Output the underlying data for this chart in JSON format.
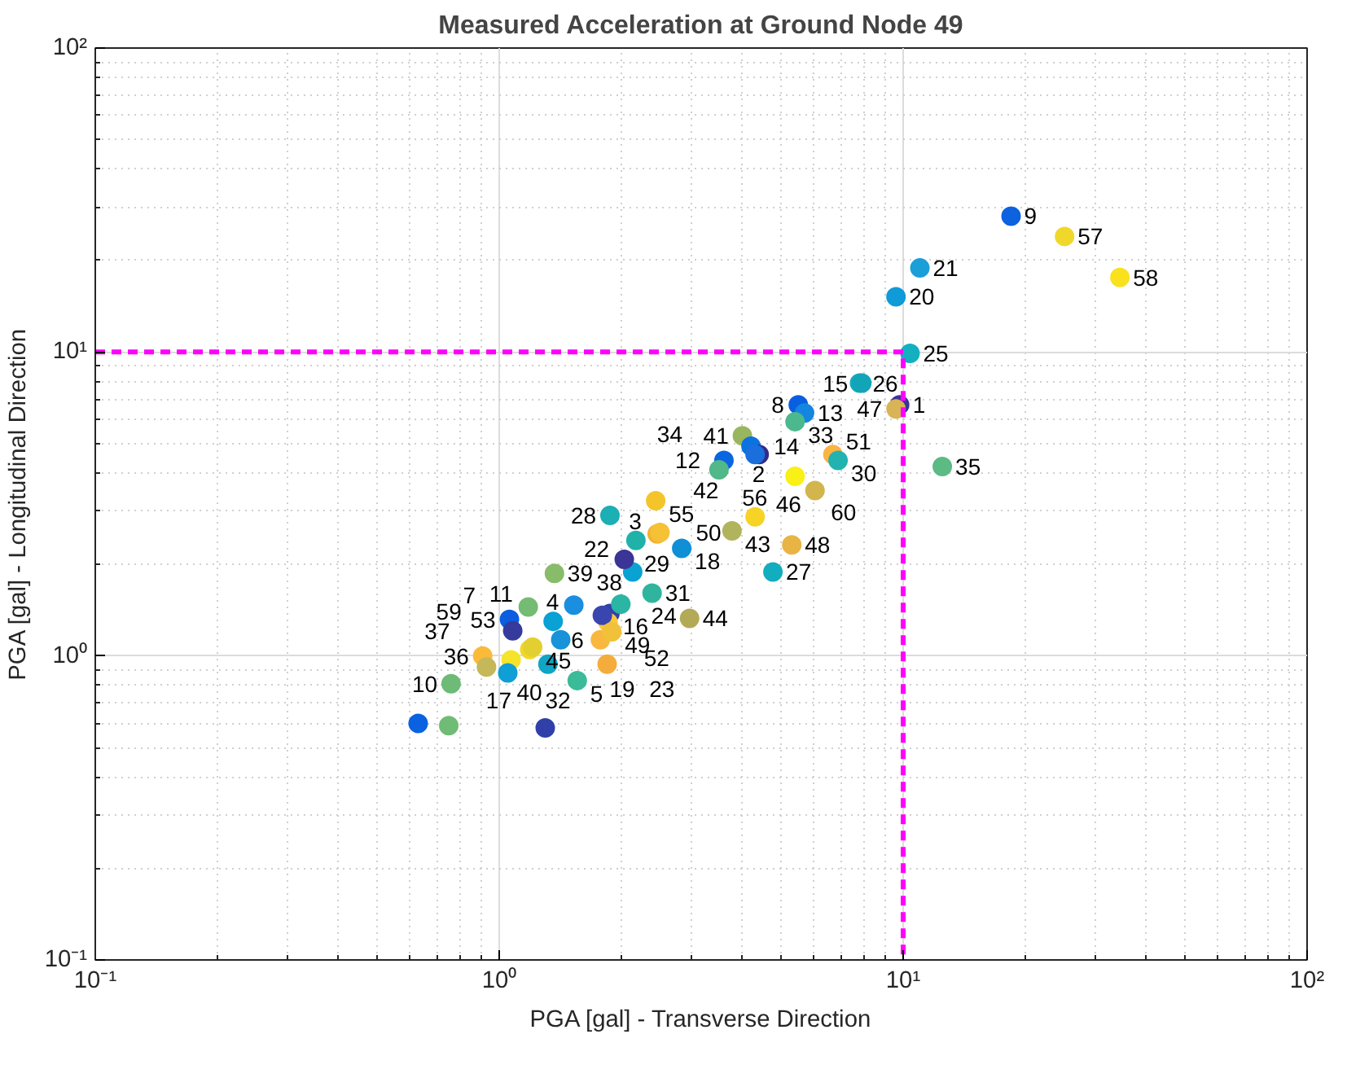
{
  "chart_data": {
    "type": "scatter",
    "title": "Measured Acceleration at Ground Node 49",
    "xlabel": "PGA [gal] - Transverse Direction",
    "ylabel": "PGA [gal] - Longitudinal Direction",
    "log": "xy",
    "grid": true,
    "marker": "circle",
    "xlim": [
      0.1,
      100
    ],
    "ylim": [
      0.1,
      100
    ],
    "xticks": [
      {
        "value": 0.1,
        "label": "10⁻¹"
      },
      {
        "value": 1,
        "label": "10⁰"
      },
      {
        "value": 10,
        "label": "10¹"
      },
      {
        "value": 100,
        "label": "10²"
      }
    ],
    "yticks": [
      {
        "value": 0.1,
        "label": "10⁻¹"
      },
      {
        "value": 1,
        "label": "10⁰"
      },
      {
        "value": 10,
        "label": "10¹"
      },
      {
        "value": 100,
        "label": "10²"
      }
    ],
    "series": [
      {
        "x": [
          18.5,
          25.1,
          34.4,
          11.0,
          9.6,
          10.4,
          7.8,
          7.9,
          9.8,
          9.6,
          5.5,
          5.7,
          5.4,
          4.0,
          4.2,
          4.4,
          3.6,
          4.3,
          3.5,
          6.7,
          6.9,
          12.5,
          5.4,
          6.05,
          2.44,
          1.88,
          4.3,
          3.77,
          5.3,
          4.76,
          2.18,
          2.46,
          2.5,
          2.83,
          1.37,
          2.14,
          2.04,
          2.39,
          2.96,
          1.18,
          1.53,
          1.88,
          1.86,
          1.36,
          1.06,
          1.08,
          1.19,
          1.21,
          1.42,
          1.78,
          1.85,
          1.32,
          0.91,
          1.07,
          0.76,
          0.93,
          1.05,
          1.56,
          0.63,
          0.75,
          1.3,
          1.8,
          2.0,
          1.9
        ],
        "values": [
          28.0,
          24.0,
          17.6,
          18.9,
          15.2,
          9.9,
          7.9,
          7.9,
          6.7,
          6.5,
          6.7,
          6.3,
          5.9,
          5.3,
          4.9,
          4.6,
          4.4,
          4.6,
          4.1,
          4.6,
          4.4,
          4.2,
          3.9,
          3.5,
          3.24,
          2.9,
          2.87,
          2.58,
          2.32,
          1.89,
          2.4,
          2.52,
          2.55,
          2.26,
          1.87,
          1.89,
          2.08,
          1.61,
          1.33,
          1.45,
          1.47,
          1.38,
          1.29,
          1.3,
          1.32,
          1.21,
          1.05,
          1.07,
          1.13,
          1.13,
          0.94,
          0.94,
          1.0,
          0.97,
          0.81,
          0.92,
          0.88,
          0.83,
          0.6,
          0.59,
          0.58,
          1.36,
          1.48,
          1.2
        ],
        "colors": [
          "#0d62e0",
          "#f0d82a",
          "#f9e11e",
          "#1a9fd8",
          "#0f9bd8",
          "#14b0c0",
          "#17aabf",
          "#12a5b8",
          "#3b3596",
          "#d8b456",
          "#0a5ee0",
          "#1486e0",
          "#4cb88e",
          "#99b65e",
          "#0b72e0",
          "#352a87",
          "#0966e0",
          "#1a6fdc",
          "#50b889",
          "#fbb341",
          "#22b3b0",
          "#5cba84",
          "#f9f016",
          "#d2b54c",
          "#f4c52a",
          "#1cafb4",
          "#f6d325",
          "#b1b45c",
          "#e9b446",
          "#12adbe",
          "#20b2a8",
          "#f2b234",
          "#f5c135",
          "#0f8fd6",
          "#88bc6a",
          "#0aa2d3",
          "#3a3596",
          "#2fb59e",
          "#b3aa58",
          "#74bc74",
          "#1a8fe0",
          "#3240a8",
          "#fbc83a",
          "#0aa1d4",
          "#0b5ee0",
          "#353a9c",
          "#f0d82a",
          "#e3d030",
          "#1892d8",
          "#f8b840",
          "#f4ad3c",
          "#10a5c5",
          "#fbba3a",
          "#f6e42a",
          "#6dbb76",
          "#c4b85a",
          "#0f9ed6",
          "#3bbb9a",
          "#0a62e0",
          "#70bc76",
          "#3040a8",
          "#3a46b0",
          "#2ab5a5",
          "#f1c13a"
        ]
      },
      {
        "type": "line",
        "x": [
          0.1,
          10,
          10
        ],
        "values": [
          10,
          10,
          0.1
        ],
        "color": "#ff00ff",
        "line_style": "dashed",
        "marker": "none"
      }
    ],
    "annotations": [
      {
        "text": "9",
        "x": 18.5,
        "y": 28.0
      },
      {
        "text": "57",
        "x": 25.1,
        "y": 24.0
      },
      {
        "text": "58",
        "x": 34.4,
        "y": 17.6
      },
      {
        "text": "21",
        "x": 11.0,
        "y": 18.9
      },
      {
        "text": "20",
        "x": 9.6,
        "y": 15.2
      },
      {
        "text": "25",
        "x": 10.4,
        "y": 9.9
      },
      {
        "text": "26",
        "x": 7.8,
        "y": 7.9
      },
      {
        "text": "15",
        "x": 7.9,
        "y": 7.9
      },
      {
        "text": "1",
        "x": 9.8,
        "y": 6.7
      },
      {
        "text": "47",
        "x": 9.6,
        "y": 6.5
      },
      {
        "text": "8",
        "x": 5.5,
        "y": 6.7
      },
      {
        "text": "13",
        "x": 5.7,
        "y": 6.3
      },
      {
        "text": "33",
        "x": 5.4,
        "y": 5.9
      },
      {
        "text": "41",
        "x": 4.0,
        "y": 5.3
      },
      {
        "text": "14",
        "x": 4.2,
        "y": 4.9
      },
      {
        "text": "2",
        "x": 4.4,
        "y": 4.6
      },
      {
        "text": "12",
        "x": 3.6,
        "y": 4.4
      },
      {
        "text": "42",
        "x": 4.3,
        "y": 4.6
      },
      {
        "text": "34",
        "x": 3.5,
        "y": 4.1
      },
      {
        "text": "51",
        "x": 6.7,
        "y": 4.6
      },
      {
        "text": "30",
        "x": 6.9,
        "y": 4.4
      },
      {
        "text": "35",
        "x": 12.5,
        "y": 4.2
      },
      {
        "text": "60",
        "x": 5.4,
        "y": 3.9
      },
      {
        "text": "46",
        "x": 6.05,
        "y": 3.5
      },
      {
        "text": "55",
        "x": 2.44,
        "y": 3.24
      },
      {
        "text": "28",
        "x": 1.88,
        "y": 2.9
      },
      {
        "text": "56",
        "x": 4.3,
        "y": 2.87
      },
      {
        "text": "43",
        "x": 3.77,
        "y": 2.58
      },
      {
        "text": "48",
        "x": 5.3,
        "y": 2.32
      },
      {
        "text": "27",
        "x": 4.76,
        "y": 1.89
      },
      {
        "text": "3",
        "x": 2.18,
        "y": 2.4
      },
      {
        "text": "29",
        "x": 2.46,
        "y": 2.52
      },
      {
        "text": "50",
        "x": 2.5,
        "y": 2.55
      },
      {
        "text": "18",
        "x": 2.83,
        "y": 2.26
      },
      {
        "text": "39",
        "x": 1.37,
        "y": 1.87
      },
      {
        "text": "22",
        "x": 2.14,
        "y": 1.89
      },
      {
        "text": "31",
        "x": 2.39,
        "y": 1.61
      },
      {
        "text": "44",
        "x": 2.96,
        "y": 1.33
      },
      {
        "text": "11",
        "x": 1.18,
        "y": 1.45
      },
      {
        "text": "38",
        "x": 1.53,
        "y": 1.47
      },
      {
        "text": "16",
        "x": 1.88,
        "y": 1.38
      },
      {
        "text": "52",
        "x": 1.86,
        "y": 1.29
      },
      {
        "text": "4",
        "x": 1.36,
        "y": 1.3
      },
      {
        "text": "53",
        "x": 1.06,
        "y": 1.32
      },
      {
        "text": "7",
        "x": 1.08,
        "y": 1.21
      },
      {
        "text": "40",
        "x": 1.19,
        "y": 1.05
      },
      {
        "text": "45",
        "x": 1.21,
        "y": 1.07
      },
      {
        "text": "19",
        "x": 1.42,
        "y": 1.13
      },
      {
        "text": "23",
        "x": 1.78,
        "y": 1.13
      },
      {
        "text": "32",
        "x": 1.85,
        "y": 0.94
      },
      {
        "text": "17",
        "x": 1.32,
        "y": 0.94
      },
      {
        "text": "36",
        "x": 0.91,
        "y": 1.0
      },
      {
        "text": "59",
        "x": 1.07,
        "y": 0.97
      },
      {
        "text": "10",
        "x": 0.76,
        "y": 0.81
      },
      {
        "text": "37",
        "x": 0.93,
        "y": 0.92
      },
      {
        "text": "5",
        "x": 1.56,
        "y": 0.83
      },
      {
        "text": "24",
        "x": 1.8,
        "y": 1.36
      },
      {
        "text": "6",
        "x": 2.0,
        "y": 1.48
      },
      {
        "text": "49",
        "x": 1.9,
        "y": 1.2
      }
    ]
  }
}
